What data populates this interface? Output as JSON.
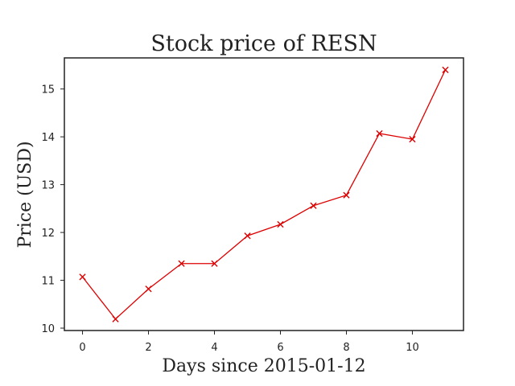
{
  "chart_data": {
    "type": "line",
    "title": "Stock price of RESN",
    "xlabel": "Days since 2015-01-12",
    "ylabel": "Price (USD)",
    "xlim": [
      -0.55,
      11.55
    ],
    "ylim": [
      9.95,
      15.65
    ],
    "x_ticks": [
      0,
      2,
      4,
      6,
      8,
      10
    ],
    "y_ticks": [
      10,
      11,
      12,
      13,
      14,
      15
    ],
    "grid": false,
    "series": [
      {
        "color": "#dd0000",
        "marker": "x",
        "x": [
          0,
          1,
          2,
          3,
          4,
          5,
          6,
          7,
          8,
          9,
          10,
          11
        ],
        "y": [
          11.07,
          10.19,
          10.82,
          11.35,
          11.35,
          11.93,
          12.17,
          12.56,
          12.78,
          14.07,
          13.95,
          15.4
        ]
      }
    ]
  }
}
